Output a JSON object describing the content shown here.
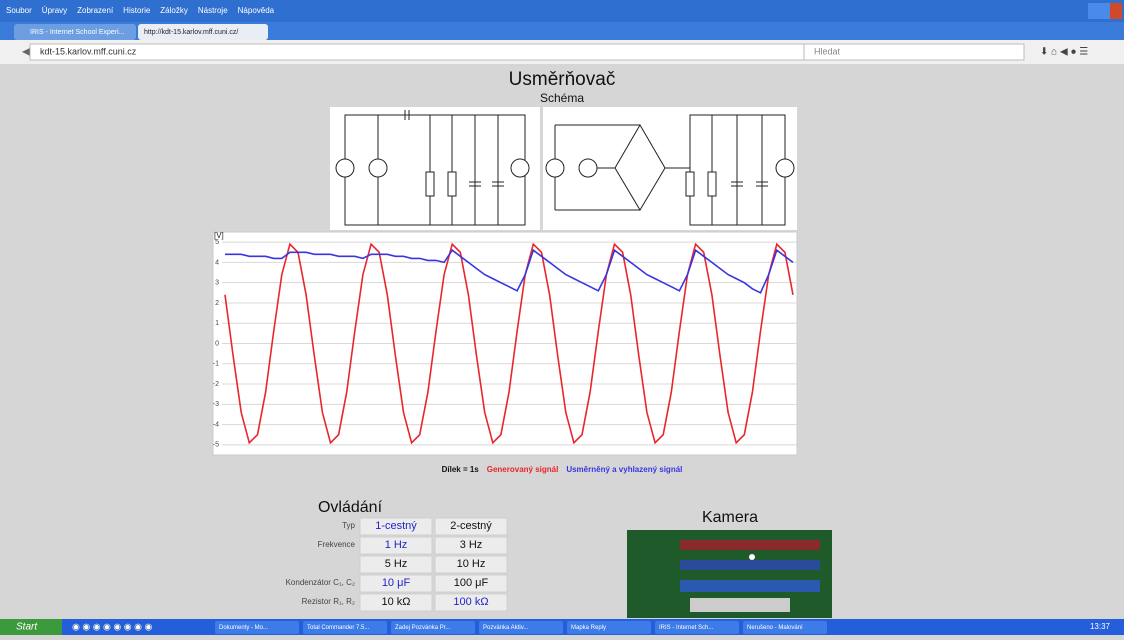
{
  "browser": {
    "menu": [
      "Soubor",
      "Úpravy",
      "Zobrazení",
      "Historie",
      "Záložky",
      "Nástroje",
      "Nápověda"
    ],
    "tabs": [
      "IRIS - Internet School Experi...",
      "http://kdt-15.karlov.mff.cuni.cz/"
    ],
    "url": "kdt-15.karlov.mff.cuni.cz",
    "search": "Hledat"
  },
  "page": {
    "title": "Usměrňovač",
    "schema_title": "Schéma",
    "legend_prefix": "Dílek = 1s",
    "controls_title": "Ovládání",
    "camera_title": "Kamera",
    "controls": [
      {
        "label": "Typ",
        "options": [
          "1-cestný",
          "2-cestný"
        ],
        "selected": 0
      },
      {
        "label": "Frekvence",
        "options": [
          "1 Hz",
          "3 Hz"
        ],
        "selected": 0
      },
      {
        "label": null,
        "options": [
          "5 Hz",
          "10 Hz"
        ],
        "selected": null
      },
      {
        "label": "Kondenzátor C₁, C₂",
        "options": [
          "10 μF",
          "100 μF"
        ],
        "selected": 0
      },
      {
        "label": "Rezistor R₁, R₂",
        "options": [
          "10 kΩ",
          "100 kΩ"
        ],
        "selected": 1
      }
    ]
  },
  "chart_data": {
    "type": "line",
    "ylabel": "[V]",
    "xlim": [
      0,
      7.0
    ],
    "ylim": [
      -5.5,
      5.5
    ],
    "yticks": [
      -5,
      -4,
      -3,
      -2,
      -1,
      0,
      1,
      2,
      3,
      4,
      5
    ],
    "grid": true,
    "x": [
      0,
      0.1,
      0.2,
      0.3,
      0.4,
      0.5,
      0.6,
      0.7,
      0.8,
      0.9,
      1.0,
      1.1,
      1.2,
      1.3,
      1.4,
      1.5,
      1.6,
      1.7,
      1.8,
      1.9,
      2.0,
      2.1,
      2.2,
      2.3,
      2.4,
      2.5,
      2.6,
      2.7,
      2.8,
      2.9,
      3.0,
      3.1,
      3.2,
      3.3,
      3.4,
      3.5,
      3.6,
      3.7,
      3.8,
      3.9,
      4.0,
      4.1,
      4.2,
      4.3,
      4.4,
      4.5,
      4.6,
      4.7,
      4.8,
      4.9,
      5.0,
      5.1,
      5.2,
      5.3,
      5.4,
      5.5,
      5.6,
      5.7,
      5.8,
      5.9,
      6.0,
      6.1,
      6.2,
      6.3,
      6.4,
      6.5,
      6.6,
      6.7,
      6.8,
      6.9,
      7.0
    ],
    "series": [
      {
        "name": "Generovaný signál",
        "color": "#e8262b",
        "values": [
          2.4,
          -0.6,
          -3.4,
          -4.9,
          -4.5,
          -2.4,
          0.6,
          3.4,
          4.9,
          4.5,
          2.4,
          -0.6,
          -3.4,
          -4.9,
          -4.5,
          -2.4,
          0.6,
          3.4,
          4.9,
          4.5,
          2.4,
          -0.6,
          -3.4,
          -4.9,
          -4.5,
          -2.4,
          0.6,
          3.4,
          4.9,
          4.5,
          2.4,
          -0.6,
          -3.4,
          -4.9,
          -4.5,
          -2.4,
          0.6,
          3.4,
          4.9,
          4.5,
          2.4,
          -0.6,
          -3.4,
          -4.9,
          -4.5,
          -2.4,
          0.6,
          3.4,
          4.9,
          4.5,
          2.4,
          -0.6,
          -3.4,
          -4.9,
          -4.5,
          -2.4,
          0.6,
          3.4,
          4.9,
          4.5,
          2.4,
          -0.6,
          -3.4,
          -4.9,
          -4.5,
          -2.4,
          0.6,
          3.4,
          4.9,
          4.5,
          2.4
        ]
      },
      {
        "name": "Usměrněný a vyhlazený signál",
        "color": "#3a35e0",
        "values": [
          4.4,
          4.4,
          4.4,
          4.3,
          4.3,
          4.3,
          4.2,
          4.2,
          4.5,
          4.5,
          4.5,
          4.4,
          4.4,
          4.4,
          4.3,
          4.3,
          4.3,
          4.2,
          4.4,
          4.4,
          4.4,
          4.3,
          4.3,
          4.2,
          4.2,
          4.1,
          4.1,
          4.0,
          4.6,
          4.3,
          4.0,
          3.7,
          3.4,
          3.2,
          3.0,
          2.8,
          2.6,
          3.4,
          4.6,
          4.3,
          4.0,
          3.7,
          3.4,
          3.2,
          3.0,
          2.8,
          2.6,
          3.4,
          4.6,
          4.3,
          4.0,
          3.7,
          3.4,
          3.2,
          3.0,
          2.8,
          2.6,
          3.4,
          4.6,
          4.3,
          4.0,
          3.7,
          3.4,
          3.2,
          3.0,
          2.7,
          2.5,
          3.4,
          4.6,
          4.3,
          4.0
        ]
      }
    ]
  },
  "taskbar": {
    "start": "Start",
    "items": [
      "Dokumenty - Mo...",
      "Total Commander 7.5...",
      "Zadej Pozvánka Pr...",
      "Pozvánka Aktiv...",
      "Mapka Reply",
      "IRIS - Internet Sch...",
      "Nerušeno - Malování"
    ],
    "clock": "13:37"
  }
}
